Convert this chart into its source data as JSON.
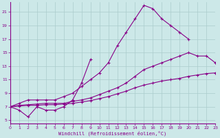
{
  "xlabel": "Windchill (Refroidissement éolien,°C)",
  "bg_color": "#cce8e8",
  "line_color": "#880088",
  "grid_color": "#aacccc",
  "series": [
    {
      "x": [
        0,
        1,
        2,
        3,
        4,
        5,
        6,
        7,
        8,
        9,
        10,
        11,
        12,
        13,
        14,
        15,
        16,
        17,
        18,
        19,
        20
      ],
      "y": [
        7,
        7.5,
        8,
        8,
        8,
        8,
        8.5,
        9,
        10,
        11,
        12,
        13.5,
        16,
        18,
        20,
        22,
        21.5,
        20,
        19,
        18,
        17
      ]
    },
    {
      "x": [
        0,
        1,
        2,
        3,
        4,
        5,
        6,
        7,
        8,
        9,
        10,
        11,
        12,
        13,
        14,
        15,
        16,
        17,
        18,
        19,
        20,
        21,
        22,
        23
      ],
      "y": [
        7,
        7.2,
        7.3,
        7.4,
        7.5,
        7.5,
        7.5,
        7.8,
        8.0,
        8.3,
        8.8,
        9.3,
        9.8,
        10.5,
        11.5,
        12.5,
        13.0,
        13.5,
        14.0,
        14.5,
        15,
        14.5,
        14.5,
        13.5
      ]
    },
    {
      "x": [
        0,
        1,
        2,
        3,
        4,
        5,
        6,
        7,
        8,
        9,
        10,
        11,
        12,
        13,
        14,
        15,
        16,
        17,
        18,
        19,
        20,
        21,
        22,
        23
      ],
      "y": [
        7,
        7.1,
        7.2,
        7.2,
        7.3,
        7.3,
        7.4,
        7.5,
        7.7,
        7.9,
        8.2,
        8.5,
        8.9,
        9.3,
        9.8,
        10.2,
        10.5,
        10.8,
        11.0,
        11.2,
        11.5,
        11.7,
        11.9,
        12.0
      ]
    },
    {
      "x": [
        0,
        1,
        2,
        3,
        4,
        5,
        6,
        7,
        8,
        9
      ],
      "y": [
        7,
        6.5,
        5.5,
        7,
        6.5,
        6.5,
        7,
        8,
        10.5,
        14
      ]
    }
  ],
  "xlim": [
    0,
    23
  ],
  "ylim": [
    4.5,
    22.5
  ],
  "yticks": [
    5,
    7,
    9,
    11,
    13,
    15,
    17,
    19,
    21
  ],
  "xticks": [
    0,
    1,
    2,
    3,
    4,
    5,
    6,
    7,
    8,
    9,
    10,
    11,
    12,
    13,
    14,
    15,
    16,
    17,
    18,
    19,
    20,
    21,
    22,
    23
  ]
}
